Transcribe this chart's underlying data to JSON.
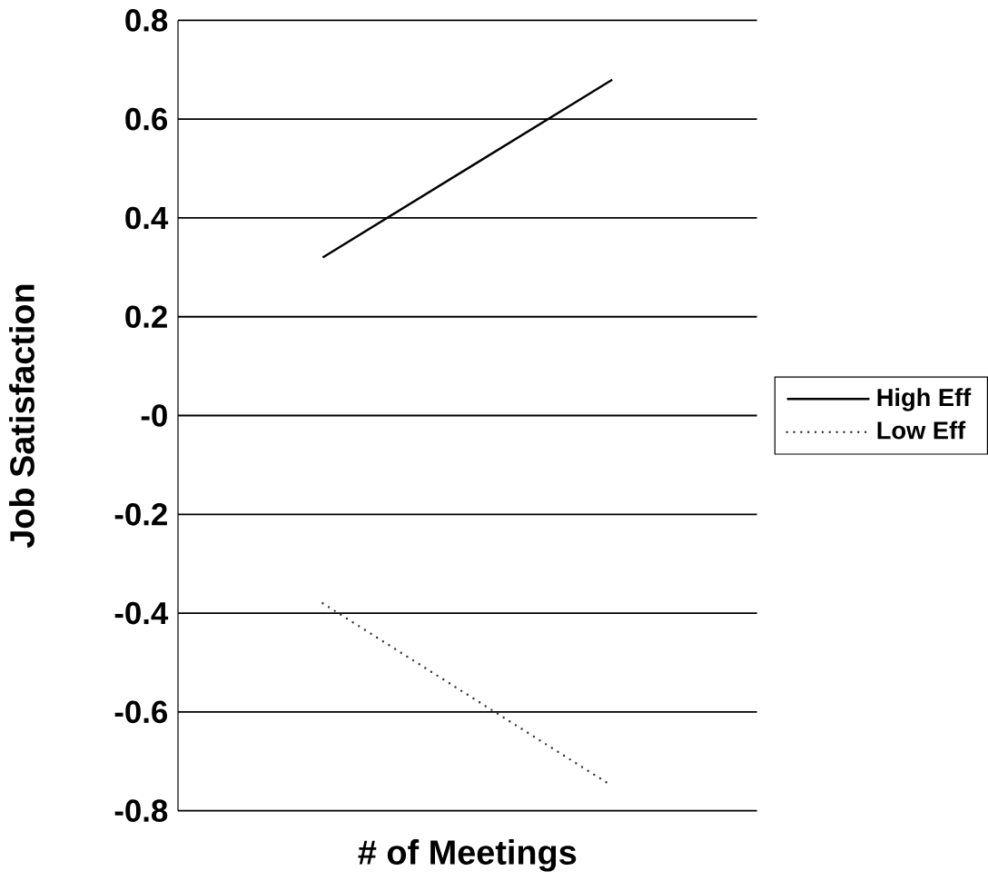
{
  "chart_data": {
    "type": "line",
    "xlabel": "# of Meetings",
    "ylabel": "Job Satisfaction",
    "categories": [
      null,
      null
    ],
    "series": [
      {
        "name": "High Eff",
        "color": "#000000",
        "values": [
          0.32,
          0.68
        ],
        "line_style": "solid"
      },
      {
        "name": "Low Eff",
        "color": "#333333",
        "values": [
          -0.38,
          -0.75
        ],
        "line_style": "dotted"
      }
    ],
    "ylim": [
      -0.8,
      0.8
    ],
    "yticks": [
      -0.8,
      -0.6,
      -0.4,
      -0.2,
      {
        "value": 0,
        "label": "-0"
      },
      0.2,
      0.4,
      0.6,
      0.8
    ],
    "grid": "y",
    "legend": "right",
    "marker": "none"
  }
}
